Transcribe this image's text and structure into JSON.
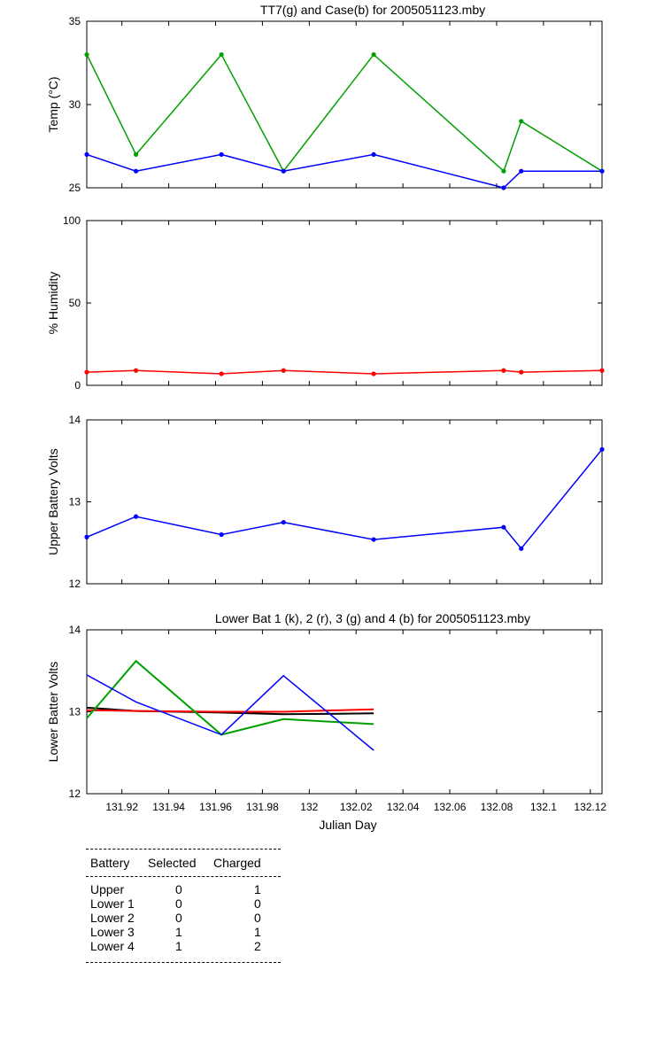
{
  "chart_data": [
    {
      "type": "line",
      "title": "TT7(g) and Case(b) for 2005051123.mby",
      "xlabel": "",
      "ylabel": "Temp  (°C)",
      "xlim": [
        131.905,
        132.125
      ],
      "ylim": [
        25,
        35
      ],
      "yticks": [
        "25",
        "30",
        "35"
      ],
      "series": [
        {
          "color": "#00a000",
          "markers": true,
          "x": [
            131.905,
            131.926,
            131.9625,
            131.989,
            132.0275,
            132.083,
            132.0905,
            132.125
          ],
          "y": [
            33,
            27,
            33,
            26,
            33,
            26,
            29,
            26
          ]
        },
        {
          "color": "#0000ff",
          "markers": true,
          "x": [
            131.905,
            131.926,
            131.9625,
            131.989,
            132.0275,
            132.083,
            132.0905,
            132.125
          ],
          "y": [
            27,
            26,
            27,
            26,
            27,
            25,
            26,
            26
          ]
        }
      ]
    },
    {
      "type": "line",
      "title": "",
      "xlabel": "",
      "ylabel": "% Humidity",
      "xlim": [
        131.905,
        132.125
      ],
      "ylim": [
        0,
        100
      ],
      "yticks": [
        "0",
        "50",
        "100"
      ],
      "series": [
        {
          "color": "#ff0000",
          "markers": true,
          "x": [
            131.905,
            131.926,
            131.9625,
            131.989,
            132.0275,
            132.083,
            132.0905,
            132.125
          ],
          "y": [
            8,
            9,
            7,
            9,
            7,
            9,
            8,
            9
          ]
        }
      ]
    },
    {
      "type": "line",
      "title": "",
      "xlabel": "",
      "ylabel": "Upper Battery Volts",
      "xlim": [
        131.905,
        132.125
      ],
      "ylim": [
        12,
        14
      ],
      "yticks": [
        "12",
        "13",
        "14"
      ],
      "series": [
        {
          "color": "#0000ff",
          "markers": true,
          "x": [
            131.905,
            131.926,
            131.9625,
            131.989,
            132.0275,
            132.083,
            132.0905,
            132.125
          ],
          "y": [
            12.57,
            12.82,
            12.6,
            12.75,
            12.54,
            12.69,
            12.43,
            13.64
          ]
        }
      ]
    },
    {
      "type": "line",
      "title": "Lower Bat 1 (k), 2 (r), 3 (g) and 4 (b) for 2005051123.mby",
      "xlabel": "Julian Day",
      "ylabel": "Lower Batter Volts",
      "xlim": [
        131.905,
        132.125
      ],
      "ylim": [
        12,
        14
      ],
      "yticks": [
        "12",
        "13",
        "14"
      ],
      "xticks": [
        131.92,
        131.94,
        131.96,
        131.98,
        132.0,
        132.02,
        132.04,
        132.06,
        132.08,
        132.1,
        132.12
      ],
      "xticklabels": [
        "131.92",
        "131.94",
        "131.96",
        "131.98",
        "132",
        "132.02",
        "132.04",
        "132.06",
        "132.08",
        "132.1",
        "132.12"
      ],
      "series": [
        {
          "color": "#000000",
          "markers": false,
          "x": [
            131.905,
            131.926,
            131.9625,
            131.989,
            132.0275
          ],
          "y": [
            13.05,
            13.01,
            12.99,
            12.97,
            12.98
          ]
        },
        {
          "color": "#ff0000",
          "markers": false,
          "x": [
            131.905,
            131.926,
            131.9625,
            131.989,
            132.0275
          ],
          "y": [
            13.02,
            13.01,
            13.0,
            13.0,
            13.03
          ]
        },
        {
          "color": "#00a000",
          "markers": false,
          "x": [
            131.905,
            131.926,
            131.9625,
            131.989,
            132.0275
          ],
          "y": [
            12.92,
            13.62,
            12.72,
            12.91,
            12.85
          ]
        },
        {
          "color": "#0000ff",
          "markers": false,
          "x": [
            131.905,
            131.926,
            131.9625,
            131.989,
            132.0275
          ],
          "y": [
            13.45,
            13.12,
            12.72,
            13.44,
            12.53
          ]
        }
      ]
    }
  ],
  "battery_table": {
    "headers": [
      "Battery",
      "Selected",
      "Charged"
    ],
    "rows": [
      {
        "battery": "Upper",
        "selected": "0",
        "charged": "1"
      },
      {
        "battery": "Lower 1",
        "selected": "0",
        "charged": "0"
      },
      {
        "battery": "Lower 2",
        "selected": "0",
        "charged": "0"
      },
      {
        "battery": "Lower 3",
        "selected": "1",
        "charged": "1"
      },
      {
        "battery": "Lower 4",
        "selected": "1",
        "charged": "2"
      }
    ]
  }
}
